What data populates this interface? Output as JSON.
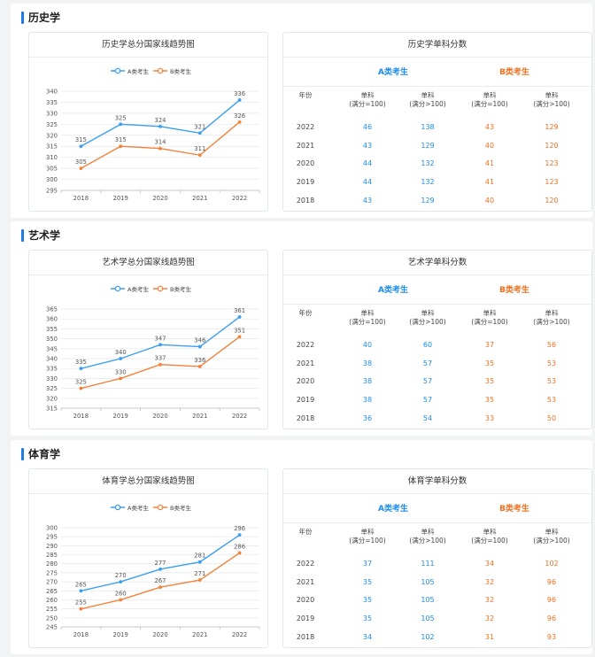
{
  "colors": {
    "a": "#3a9ff0",
    "b": "#f3823a",
    "accent": "#1e7be8"
  },
  "legend": {
    "a": "A类考生",
    "b": "B类考生"
  },
  "table_headers": {
    "group_a": "A类考生",
    "group_b": "B类考生",
    "year": "年份",
    "col_label": "单科",
    "full100": "(满分=100)",
    "full_gt100": "(满分>100)"
  },
  "sections": [
    {
      "title": "历史学",
      "chart_title": "历史学总分国家线趋势图",
      "table_title": "历史学单科分数",
      "rows": [
        {
          "year": "2022",
          "a1": "46",
          "a2": "138",
          "b1": "43",
          "b2": "129"
        },
        {
          "year": "2021",
          "a1": "43",
          "a2": "129",
          "b1": "40",
          "b2": "120"
        },
        {
          "year": "2020",
          "a1": "44",
          "a2": "132",
          "b1": "41",
          "b2": "123"
        },
        {
          "year": "2019",
          "a1": "44",
          "a2": "132",
          "b1": "41",
          "b2": "123"
        },
        {
          "year": "2018",
          "a1": "43",
          "a2": "129",
          "b1": "40",
          "b2": "120"
        }
      ]
    },
    {
      "title": "艺术学",
      "chart_title": "艺术学总分国家线趋势图",
      "table_title": "艺术学单科分数",
      "rows": [
        {
          "year": "2022",
          "a1": "40",
          "a2": "60",
          "b1": "37",
          "b2": "56"
        },
        {
          "year": "2021",
          "a1": "38",
          "a2": "57",
          "b1": "35",
          "b2": "53"
        },
        {
          "year": "2020",
          "a1": "38",
          "a2": "57",
          "b1": "35",
          "b2": "53"
        },
        {
          "year": "2019",
          "a1": "38",
          "a2": "57",
          "b1": "35",
          "b2": "53"
        },
        {
          "year": "2018",
          "a1": "36",
          "a2": "54",
          "b1": "33",
          "b2": "50"
        }
      ]
    },
    {
      "title": "体育学",
      "chart_title": "体育学总分国家线趋势图",
      "table_title": "体育学单科分数",
      "rows": [
        {
          "year": "2022",
          "a1": "37",
          "a2": "111",
          "b1": "34",
          "b2": "102"
        },
        {
          "year": "2021",
          "a1": "35",
          "a2": "105",
          "b1": "32",
          "b2": "96"
        },
        {
          "year": "2020",
          "a1": "35",
          "a2": "105",
          "b1": "32",
          "b2": "96"
        },
        {
          "year": "2019",
          "a1": "35",
          "a2": "105",
          "b1": "32",
          "b2": "96"
        },
        {
          "year": "2018",
          "a1": "34",
          "a2": "102",
          "b1": "31",
          "b2": "93"
        }
      ]
    }
  ],
  "chart_data": [
    {
      "type": "line",
      "title": "历史学总分国家线趋势图",
      "x": [
        "2018",
        "2019",
        "2020",
        "2021",
        "2022"
      ],
      "series": [
        {
          "name": "A类考生",
          "values": [
            315,
            325,
            324,
            321,
            336
          ]
        },
        {
          "name": "B类考生",
          "values": [
            305,
            315,
            314,
            311,
            326
          ]
        }
      ],
      "ylim": [
        295,
        340
      ],
      "yticks": [
        295,
        300,
        305,
        310,
        315,
        320,
        325,
        330,
        335,
        340
      ],
      "legend": "top-center",
      "grid": true
    },
    {
      "type": "line",
      "title": "艺术学总分国家线趋势图",
      "x": [
        "2018",
        "2019",
        "2020",
        "2021",
        "2022"
      ],
      "series": [
        {
          "name": "A类考生",
          "values": [
            335,
            340,
            347,
            346,
            361
          ]
        },
        {
          "name": "B类考生",
          "values": [
            325,
            330,
            337,
            336,
            351
          ]
        }
      ],
      "ylim": [
        315,
        365
      ],
      "yticks": [
        315,
        320,
        325,
        330,
        335,
        340,
        345,
        350,
        355,
        360,
        365
      ],
      "legend": "top-center",
      "grid": true
    },
    {
      "type": "line",
      "title": "体育学总分国家线趋势图",
      "x": [
        "2018",
        "2019",
        "2020",
        "2021",
        "2022"
      ],
      "series": [
        {
          "name": "A类考生",
          "values": [
            265,
            270,
            277,
            281,
            296
          ]
        },
        {
          "name": "B类考生",
          "values": [
            255,
            260,
            267,
            271,
            286
          ]
        }
      ],
      "ylim": [
        245,
        300
      ],
      "yticks": [
        245,
        250,
        255,
        260,
        265,
        270,
        275,
        280,
        285,
        290,
        295,
        300
      ],
      "legend": "top-center",
      "grid": true
    }
  ]
}
